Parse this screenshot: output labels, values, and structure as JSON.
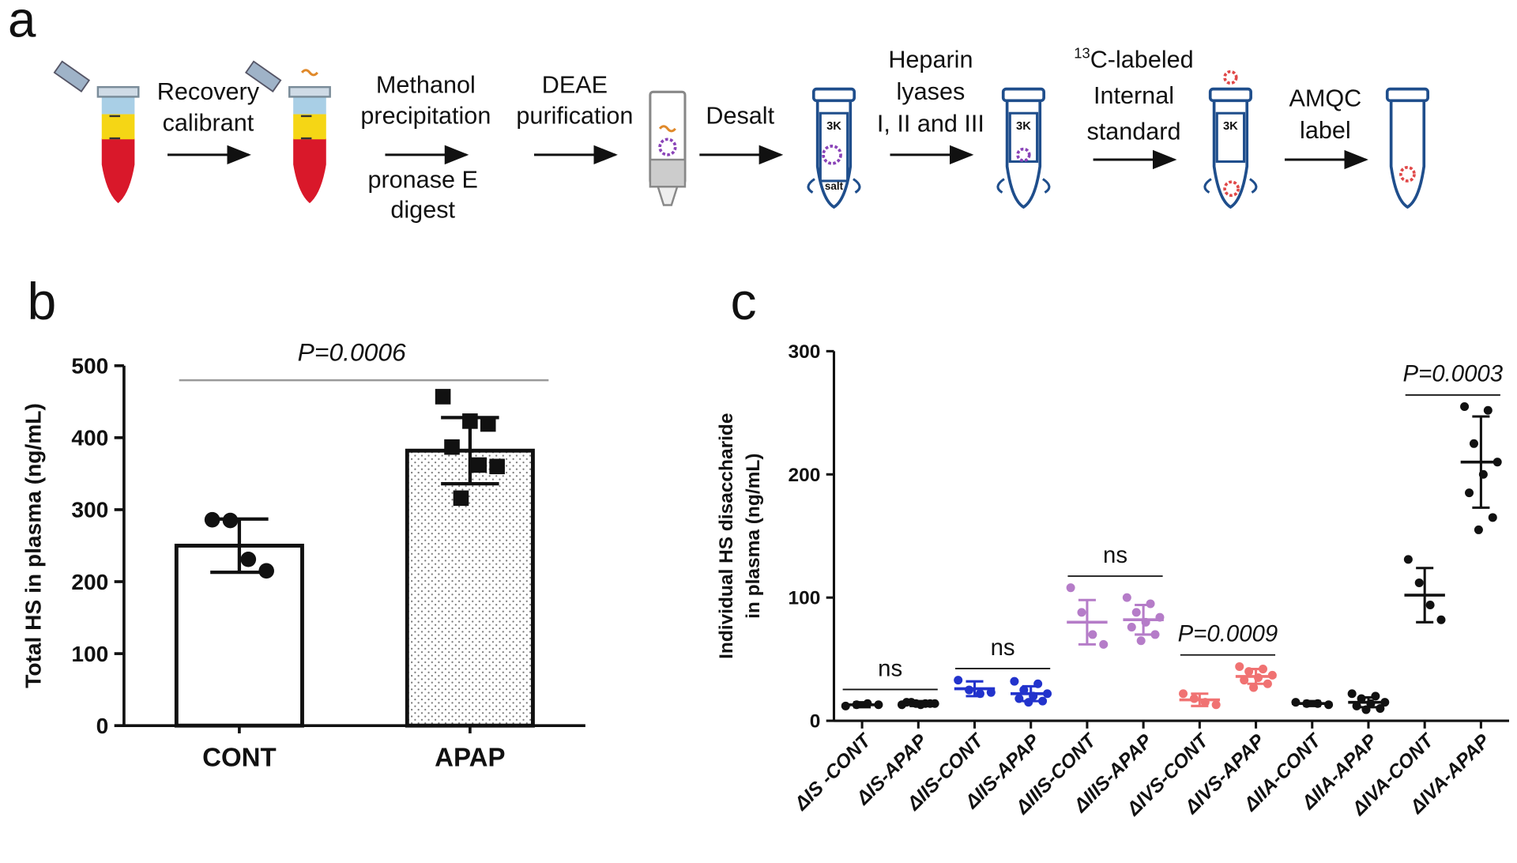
{
  "schematic": {
    "panel": "a",
    "steps": [
      {
        "above": [
          "Recovery",
          "calibrant"
        ]
      },
      {
        "above": [
          "Methanol",
          "precipitation"
        ],
        "below": [
          "pronase E",
          "digest"
        ]
      },
      {
        "above": [
          "DEAE",
          "purification"
        ]
      },
      {
        "above": [
          "Desalt"
        ]
      },
      {
        "above": [
          "Heparin",
          "lyases",
          "I, II and III"
        ]
      },
      {
        "superscript": "13",
        "above": [
          "C-labeled",
          "Internal",
          "standard"
        ]
      },
      {
        "above": [
          "AMQC",
          "label"
        ]
      }
    ],
    "tube_labels": [
      "3K",
      "salt"
    ]
  },
  "chart_data": [
    {
      "type": "bar",
      "panel": "b",
      "ylabel": "Total HS in plasma (ng/mL)",
      "categories": [
        "CONT",
        "APAP"
      ],
      "values": [
        250,
        382
      ],
      "errors": [
        37,
        46
      ],
      "points": [
        [
          286,
          285,
          231,
          215
        ],
        [
          457,
          419,
          423,
          387,
          360,
          362,
          316
        ]
      ],
      "markers": [
        "circle",
        "square"
      ],
      "patterns": [
        "none",
        "dots"
      ],
      "color": "#111111",
      "annotation": "P=0.0006",
      "ylim": [
        0,
        500
      ],
      "yticks": [
        0,
        100,
        200,
        300,
        400,
        500
      ]
    },
    {
      "type": "dotplot",
      "panel": "c",
      "ylabel": [
        "Individual HS disaccharide",
        "in plasma (ng/mL)"
      ],
      "categories": [
        "ΔIS -CONT",
        "ΔIS-APAP",
        "ΔIIS-CONT",
        "ΔIIS-APAP",
        "ΔIIIS-CONT",
        "ΔIIIS-APAP",
        "ΔIVS-CONT",
        "ΔIVS-APAP",
        "ΔIIA-CONT",
        "ΔIIA-APAP",
        "ΔIVA-CONT",
        "ΔIVA-APAP"
      ],
      "values": [
        13,
        14,
        26,
        22,
        80,
        82,
        17,
        36,
        14,
        15,
        102,
        210
      ],
      "errors": [
        2,
        2,
        6,
        6,
        18,
        12,
        5,
        6,
        2,
        4,
        22,
        37
      ],
      "points": [
        [
          12,
          13,
          14,
          13
        ],
        [
          13,
          14,
          15,
          14,
          13,
          15,
          14,
          14
        ],
        [
          33,
          25,
          22,
          23
        ],
        [
          32,
          30,
          25,
          22,
          20,
          18,
          16,
          15
        ],
        [
          108,
          88,
          70,
          62
        ],
        [
          100,
          95,
          88,
          84,
          80,
          76,
          70,
          65
        ],
        [
          22,
          18,
          15,
          13
        ],
        [
          44,
          42,
          40,
          37,
          35,
          33,
          30,
          27
        ],
        [
          15,
          14,
          14,
          13
        ],
        [
          22,
          20,
          18,
          15,
          14,
          12,
          10,
          9
        ],
        [
          131,
          112,
          94,
          82
        ],
        [
          255,
          252,
          225,
          210,
          200,
          185,
          165,
          155
        ]
      ],
      "colors": [
        "#111111",
        "#111111",
        "#2233cc",
        "#2233cc",
        "#b57cc8",
        "#b57cc8",
        "#f07272",
        "#f07272",
        "#111111",
        "#111111",
        "#111111",
        "#111111"
      ],
      "annotations": [
        {
          "text": "ns",
          "between": [
            "ΔIS -CONT",
            "ΔIS-APAP"
          ]
        },
        {
          "text": "ns",
          "between": [
            "ΔIIS-CONT",
            "ΔIIS-APAP"
          ]
        },
        {
          "text": "ns",
          "between": [
            "ΔIIIS-CONT",
            "ΔIIIS-APAP"
          ]
        },
        {
          "text": "P=0.0009",
          "between": [
            "ΔIVS-CONT",
            "ΔIVS-APAP"
          ]
        },
        {
          "text": "P=0.0003",
          "between": [
            "ΔIVA-CONT",
            "ΔIVA-APAP"
          ]
        }
      ],
      "ylim": [
        0,
        300
      ],
      "yticks": [
        0,
        100,
        200,
        300
      ]
    }
  ]
}
